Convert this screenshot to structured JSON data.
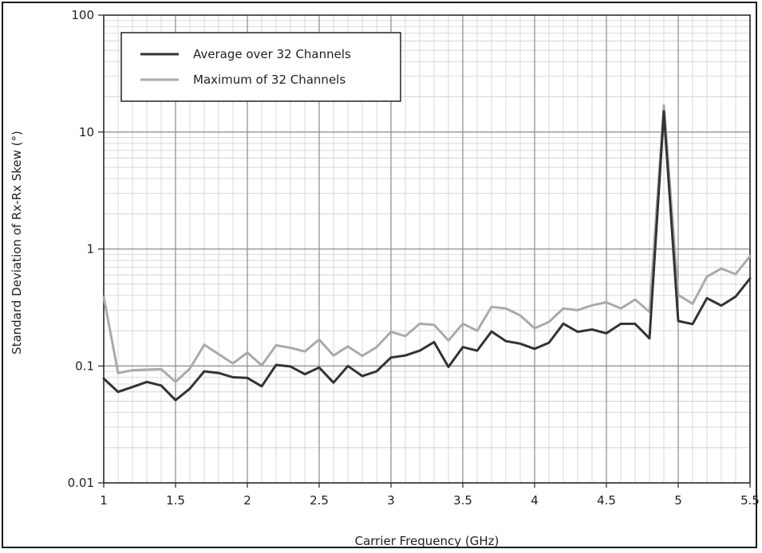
{
  "chart_data": {
    "type": "line",
    "title": "",
    "xlabel": "Carrier Frequency (GHz)",
    "ylabel": "Standard Deviation of Rx-Rx Skew (°)",
    "xlim": [
      1,
      5.5
    ],
    "ylim": [
      0.01,
      100
    ],
    "yscale": "log",
    "grid": true,
    "legend_position": "top-left",
    "x_ticks": [
      "1",
      "1.5",
      "2",
      "2.5",
      "3",
      "3.5",
      "4",
      "4.5",
      "5",
      "5.5"
    ],
    "y_ticks": [
      "0.01",
      "0.1",
      "1",
      "10",
      "100"
    ],
    "x": [
      1.0,
      1.1,
      1.2,
      1.3,
      1.4,
      1.5,
      1.6,
      1.7,
      1.8,
      1.9,
      2.0,
      2.1,
      2.2,
      2.3,
      2.4,
      2.5,
      2.6,
      2.7,
      2.8,
      2.9,
      3.0,
      3.1,
      3.2,
      3.3,
      3.4,
      3.5,
      3.6,
      3.7,
      3.8,
      3.9,
      4.0,
      4.1,
      4.2,
      4.3,
      4.4,
      4.5,
      4.6,
      4.7,
      4.8,
      4.9,
      5.0,
      5.1,
      5.2,
      5.3,
      5.4,
      5.5
    ],
    "series": [
      {
        "name": "Average over 32 Channels",
        "color": "#333333",
        "values": [
          0.078,
          0.06,
          0.066,
          0.073,
          0.068,
          0.051,
          0.064,
          0.09,
          0.087,
          0.08,
          0.079,
          0.067,
          0.102,
          0.099,
          0.085,
          0.097,
          0.072,
          0.1,
          0.082,
          0.09,
          0.118,
          0.123,
          0.135,
          0.16,
          0.098,
          0.145,
          0.135,
          0.197,
          0.163,
          0.155,
          0.14,
          0.158,
          0.23,
          0.196,
          0.205,
          0.19,
          0.229,
          0.229,
          0.172,
          15.0,
          0.242,
          0.228,
          0.38,
          0.328,
          0.392,
          0.56
        ]
      },
      {
        "name": "Maximum of 32 Channels",
        "color": "#aaaaaa",
        "values": [
          0.39,
          0.087,
          0.092,
          0.093,
          0.094,
          0.073,
          0.095,
          0.152,
          0.126,
          0.105,
          0.13,
          0.101,
          0.15,
          0.143,
          0.133,
          0.168,
          0.123,
          0.147,
          0.122,
          0.145,
          0.196,
          0.18,
          0.23,
          0.225,
          0.165,
          0.23,
          0.2,
          0.32,
          0.31,
          0.27,
          0.21,
          0.238,
          0.31,
          0.3,
          0.33,
          0.35,
          0.31,
          0.37,
          0.29,
          17.0,
          0.405,
          0.34,
          0.58,
          0.68,
          0.61,
          0.87
        ]
      }
    ]
  }
}
